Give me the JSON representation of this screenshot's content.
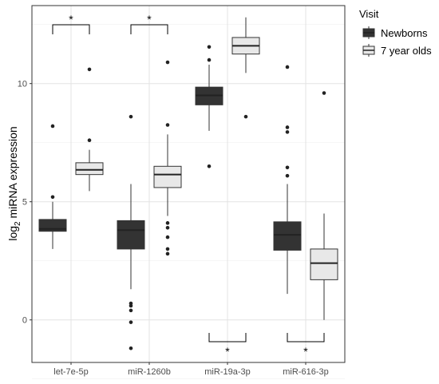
{
  "chart_data": {
    "type": "boxplot",
    "ylabel_base": "log",
    "ylabel_subscript": "2",
    "ylabel_rest": " miRNA expression",
    "xlabel": "",
    "ylim": [
      -1.8,
      13.3
    ],
    "yticks": [
      0,
      5,
      10
    ],
    "grid": true,
    "legend": {
      "title": "Visit",
      "placement": "right",
      "entries": [
        {
          "name": "Newborns",
          "color": "#333333"
        },
        {
          "name": "7 year olds",
          "color": "#e8e8e8"
        }
      ]
    },
    "categories": [
      "let-7e-5p",
      "miR-1260b",
      "miR-19a-3p",
      "miR-616-3p"
    ],
    "groups": [
      {
        "category": "let-7e-5p",
        "significance": "*",
        "significance_position": "top",
        "boxes": [
          {
            "series": "Newborns",
            "min": 3.0,
            "q1": 3.75,
            "median": 3.85,
            "q3": 4.25,
            "max": 5.0,
            "outliers": [
              5.2,
              8.2
            ]
          },
          {
            "series": "7 year olds",
            "min": 5.45,
            "q1": 6.15,
            "median": 6.35,
            "q3": 6.65,
            "max": 7.2,
            "outliers": [
              7.6,
              10.6
            ]
          }
        ]
      },
      {
        "category": "miR-1260b",
        "significance": "*",
        "significance_position": "top",
        "boxes": [
          {
            "series": "Newborns",
            "min": 1.3,
            "q1": 3.0,
            "median": 3.8,
            "q3": 4.2,
            "max": 5.75,
            "outliers": [
              8.6,
              0.7,
              0.6,
              0.4,
              -0.1,
              -1.2
            ]
          },
          {
            "series": "7 year olds",
            "min": 4.4,
            "q1": 5.6,
            "median": 6.15,
            "q3": 6.5,
            "max": 7.85,
            "outliers": [
              8.25,
              10.9,
              4.1,
              3.9,
              3.5,
              3.0,
              2.8
            ]
          }
        ]
      },
      {
        "category": "miR-19a-3p",
        "significance": "*",
        "significance_position": "bottom",
        "boxes": [
          {
            "series": "Newborns",
            "min": 8.0,
            "q1": 9.1,
            "median": 9.5,
            "q3": 9.85,
            "max": 10.8,
            "outliers": [
              11.0,
              11.55,
              6.5
            ]
          },
          {
            "series": "7 year olds",
            "min": 10.45,
            "q1": 11.25,
            "median": 11.6,
            "q3": 11.95,
            "max": 12.8,
            "outliers": [
              8.6
            ]
          }
        ]
      },
      {
        "category": "miR-616-3p",
        "significance": "*",
        "significance_position": "bottom",
        "boxes": [
          {
            "series": "Newborns",
            "min": 1.1,
            "q1": 2.95,
            "median": 3.6,
            "q3": 4.15,
            "max": 5.75,
            "outliers": [
              6.1,
              6.45,
              7.95,
              8.15,
              10.7
            ]
          },
          {
            "series": "7 year olds",
            "min": 0.0,
            "q1": 1.7,
            "median": 2.4,
            "q3": 3.0,
            "max": 4.5,
            "outliers": [
              9.6
            ]
          }
        ]
      }
    ]
  }
}
